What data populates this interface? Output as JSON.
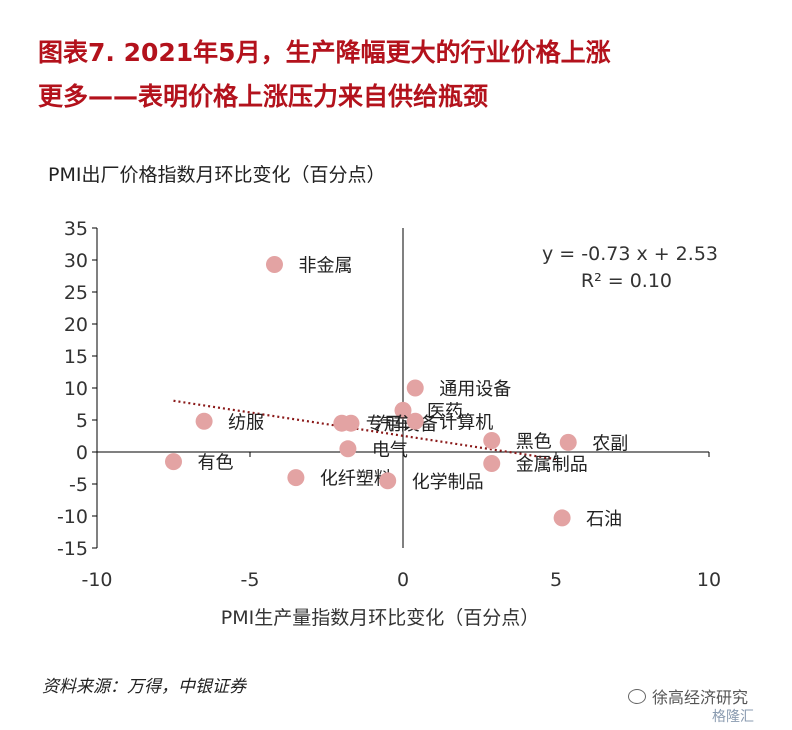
{
  "header": {
    "title_line1": "图表7. 2021年5月，生产降幅更大的行业价格上涨",
    "title_line2": "更多——表明价格上涨压力来自供给瓶颈"
  },
  "footer": {
    "source": "资料来源：万得，中银证券",
    "watermark": "徐高经济研究",
    "watermark2": "格隆汇"
  },
  "colors": {
    "title": "#b3121c",
    "point": "#e3a3a3",
    "trend": "#8b1a1a",
    "axis": "#000000"
  },
  "chart_data": {
    "type": "scatter",
    "ylabel": "PMI出厂价格指数月环比变化（百分点）",
    "xlabel": "PMI生产量指数月环比变化（百分点）",
    "xlim": [
      -10,
      10
    ],
    "ylim": [
      -15,
      35
    ],
    "xticks": [
      -10,
      -5,
      0,
      5,
      10
    ],
    "yticks": [
      35,
      30,
      25,
      20,
      15,
      10,
      5,
      0,
      -5,
      -10,
      -15
    ],
    "grid": false,
    "equation": "y = -0.73 x + 2.53",
    "r_squared": "R² = 0.10",
    "trendline": {
      "slope": -0.73,
      "intercept": 2.53,
      "x_range": [
        -7.5,
        5
      ]
    },
    "points": [
      {
        "label": "非金属",
        "x": -4.2,
        "y": 29.3
      },
      {
        "label": "通用设备",
        "x": 0.4,
        "y": 10.0
      },
      {
        "label": "医药",
        "x": 0.0,
        "y": 6.5
      },
      {
        "label": "纺服",
        "x": -6.5,
        "y": 4.8
      },
      {
        "label": "专用设备",
        "x": -2.0,
        "y": 4.5
      },
      {
        "label": "汽车",
        "x": -1.7,
        "y": 4.5
      },
      {
        "label": "计算机",
        "x": 0.4,
        "y": 4.8
      },
      {
        "label": "电气",
        "x": -1.8,
        "y": 0.5
      },
      {
        "label": "黑色",
        "x": 2.9,
        "y": 1.8
      },
      {
        "label": "农副",
        "x": 5.4,
        "y": 1.5
      },
      {
        "label": "有色",
        "x": -7.5,
        "y": -1.5
      },
      {
        "label": "金属制品",
        "x": 2.9,
        "y": -1.8
      },
      {
        "label": "化纤塑料",
        "x": -3.5,
        "y": -4.0
      },
      {
        "label": "化学制品",
        "x": -0.5,
        "y": -4.5
      },
      {
        "label": "石油",
        "x": 5.2,
        "y": -10.3
      }
    ]
  }
}
